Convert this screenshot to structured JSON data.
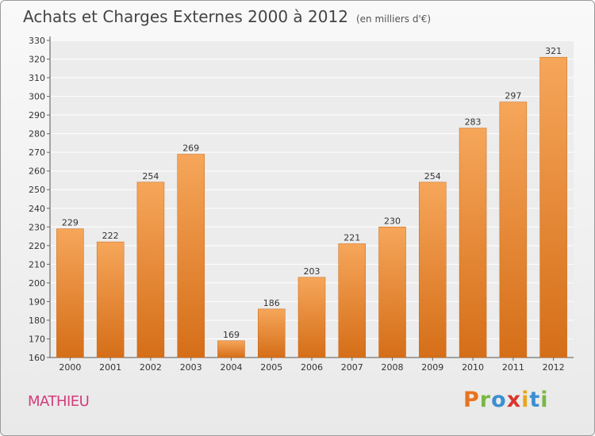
{
  "header": {
    "title": "Achats et Charges Externes 2000 à 2012",
    "unit": "(en milliers d'€)"
  },
  "commune": "MATHIEU",
  "logo": {
    "text": "Proxiti",
    "letters": [
      {
        "ch": "P",
        "color": "#e8731e"
      },
      {
        "ch": "r",
        "color": "#79b843"
      },
      {
        "ch": "o",
        "color": "#3b8fd0"
      },
      {
        "ch": "x",
        "color": "#d9352f"
      },
      {
        "ch": "i",
        "color": "#e8a61e"
      },
      {
        "ch": "t",
        "color": "#3b8fd0"
      },
      {
        "ch": "i",
        "color": "#79b843"
      }
    ]
  },
  "colors": {
    "bar_light": "#f6a65a",
    "bar_dark": "#d56e18",
    "grid": "#ffffff",
    "commune": "#d23c7c"
  },
  "chart_data": {
    "type": "bar",
    "title": "Achats et Charges Externes 2000 à 2012",
    "subtitle": "(en milliers d'€)",
    "categories": [
      "2000",
      "2001",
      "2002",
      "2003",
      "2004",
      "2005",
      "2006",
      "2007",
      "2008",
      "2009",
      "2010",
      "2011",
      "2012"
    ],
    "values": [
      229,
      222,
      254,
      269,
      169,
      186,
      203,
      221,
      230,
      254,
      283,
      297,
      321
    ],
    "ylim": [
      160,
      330
    ],
    "yticks": [
      160,
      170,
      180,
      190,
      200,
      210,
      220,
      230,
      240,
      250,
      260,
      270,
      280,
      290,
      300,
      310,
      320,
      330
    ],
    "grid": true,
    "xlabel": "",
    "ylabel": ""
  }
}
